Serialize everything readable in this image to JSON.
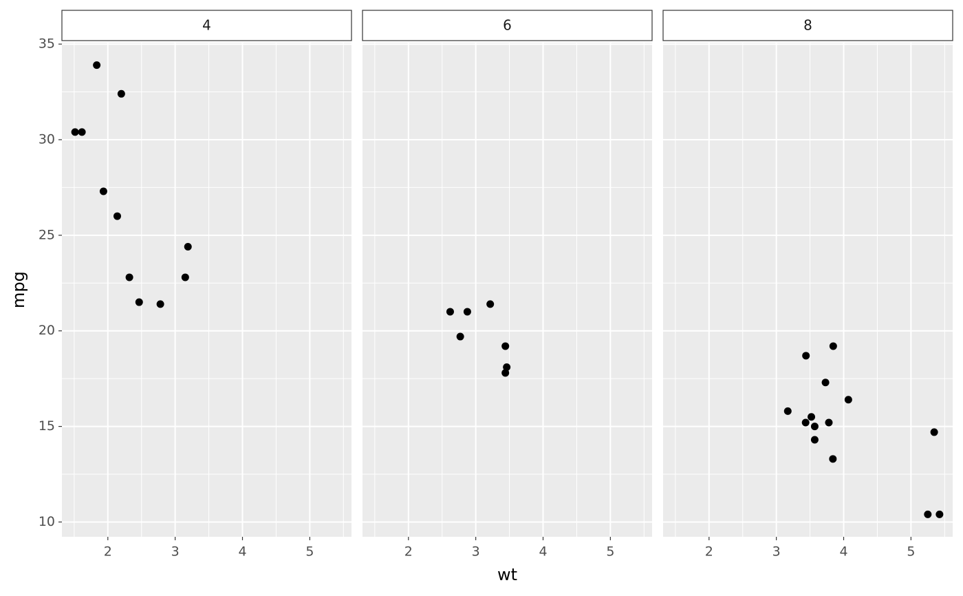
{
  "chart_data": [
    {
      "type": "scatter",
      "title": "4",
      "ylabel": "mpg",
      "color": "#000000",
      "grid": true,
      "x": [
        2.32,
        3.19,
        3.15,
        2.2,
        1.615,
        1.835,
        2.465,
        1.935,
        2.14,
        1.513,
        2.78
      ],
      "values": [
        22.8,
        24.4,
        22.8,
        32.4,
        30.4,
        33.9,
        21.5,
        27.3,
        26.0,
        30.4,
        21.4
      ],
      "xlim": [
        1.3175,
        5.6196
      ],
      "ylim": [
        9.225,
        35.075
      ],
      "xticks": [
        2,
        3,
        4,
        5
      ],
      "yticks": [
        10,
        15,
        20,
        25,
        30,
        35
      ]
    },
    {
      "type": "scatter",
      "title": "6",
      "xlabel": "wt",
      "color": "#000000",
      "grid": true,
      "x": [
        2.62,
        2.875,
        3.215,
        3.46,
        3.44,
        3.44,
        2.77
      ],
      "values": [
        21.0,
        21.0,
        21.4,
        18.1,
        19.2,
        17.8,
        19.7
      ],
      "xlim": [
        1.3175,
        5.6196
      ],
      "ylim": [
        9.225,
        35.075
      ],
      "xticks": [
        2,
        3,
        4,
        5
      ],
      "yticks": [
        10,
        15,
        20,
        25,
        30,
        35
      ]
    },
    {
      "type": "scatter",
      "title": "8",
      "color": "#000000",
      "grid": true,
      "x": [
        3.44,
        3.57,
        4.07,
        3.73,
        3.78,
        5.25,
        5.424,
        5.345,
        3.52,
        3.435,
        3.84,
        3.845,
        3.17,
        3.57
      ],
      "values": [
        18.7,
        14.3,
        16.4,
        17.3,
        15.2,
        10.4,
        10.4,
        14.7,
        15.5,
        15.2,
        13.3,
        19.2,
        15.8,
        15.0
      ],
      "xlim": [
        1.3175,
        5.6196
      ],
      "ylim": [
        9.225,
        35.075
      ],
      "xticks": [
        2,
        3,
        4,
        5
      ],
      "yticks": [
        10,
        15,
        20,
        25,
        30,
        35
      ]
    }
  ]
}
